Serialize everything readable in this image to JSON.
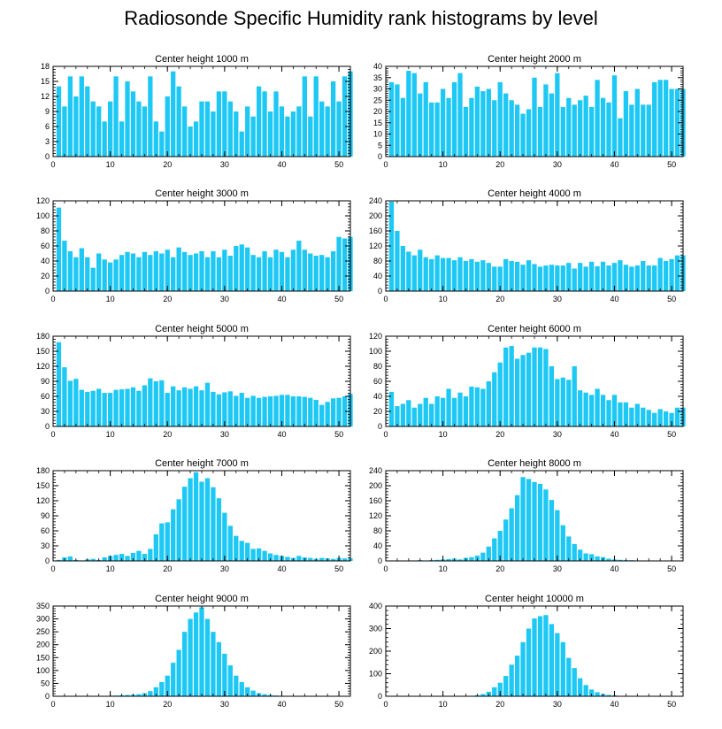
{
  "title": "Radiosonde Specific Humidity rank histograms by level",
  "colors": {
    "bar": "#1ec8f4",
    "axis": "#000000",
    "background": "#ffffff"
  },
  "chart_data": [
    {
      "type": "bar",
      "title": "Center height 1000 m",
      "xlim": [
        0,
        52
      ],
      "xticks": [
        0,
        10,
        20,
        30,
        40,
        50
      ],
      "ylim": [
        0,
        18
      ],
      "yticks": [
        0,
        3,
        6,
        9,
        12,
        15,
        18
      ],
      "x_start": 1,
      "values": [
        14,
        10,
        16,
        12,
        16,
        14,
        11,
        10,
        7,
        11,
        16,
        7,
        15,
        13,
        11,
        10,
        16,
        7,
        5,
        12,
        17,
        14,
        10,
        6,
        7,
        11,
        11,
        9,
        13,
        13,
        11,
        9,
        5,
        10,
        8,
        14,
        13,
        9,
        13,
        10,
        8,
        9,
        10,
        16,
        8,
        16,
        11,
        10,
        15,
        11,
        16,
        17
      ]
    },
    {
      "type": "bar",
      "title": "Center height 2000 m",
      "xlim": [
        0,
        52
      ],
      "xticks": [
        0,
        10,
        20,
        30,
        40,
        50
      ],
      "ylim": [
        0,
        40
      ],
      "yticks": [
        0,
        5,
        10,
        15,
        20,
        25,
        30,
        35,
        40
      ],
      "x_start": 1,
      "values": [
        33,
        32,
        26,
        38,
        37,
        28,
        33,
        24,
        24,
        30,
        26,
        33,
        37,
        22,
        26,
        31,
        29,
        30,
        25,
        33,
        28,
        25,
        23,
        19,
        21,
        35,
        22,
        32,
        28,
        37,
        22,
        26,
        23,
        25,
        27,
        22,
        34,
        26,
        24,
        36,
        17,
        29,
        23,
        30,
        23,
        23,
        33,
        34,
        34,
        30,
        30,
        30
      ]
    },
    {
      "type": "bar",
      "title": "Center height 3000 m",
      "xlim": [
        0,
        52
      ],
      "xticks": [
        0,
        10,
        20,
        30,
        40,
        50
      ],
      "ylim": [
        0,
        120
      ],
      "yticks": [
        0,
        20,
        40,
        60,
        80,
        100,
        120
      ],
      "x_start": 1,
      "values": [
        111,
        67,
        53,
        45,
        57,
        45,
        31,
        50,
        42,
        38,
        42,
        48,
        52,
        50,
        45,
        52,
        48,
        53,
        50,
        55,
        45,
        58,
        52,
        48,
        50,
        53,
        45,
        53,
        45,
        55,
        47,
        60,
        62,
        58,
        48,
        45,
        53,
        45,
        55,
        52,
        45,
        55,
        67,
        55,
        50,
        47,
        48,
        45,
        53,
        72,
        70,
        72
      ]
    },
    {
      "type": "bar",
      "title": "Center height 4000 m",
      "xlim": [
        0,
        52
      ],
      "xticks": [
        0,
        10,
        20,
        30,
        40,
        50
      ],
      "ylim": [
        0,
        240
      ],
      "yticks": [
        0,
        40,
        80,
        120,
        160,
        200,
        240
      ],
      "x_start": 1,
      "values": [
        238,
        160,
        120,
        105,
        95,
        110,
        90,
        85,
        95,
        88,
        88,
        82,
        90,
        80,
        85,
        78,
        82,
        75,
        65,
        65,
        85,
        80,
        78,
        70,
        82,
        72,
        65,
        68,
        70,
        68,
        68,
        75,
        60,
        75,
        65,
        78,
        66,
        78,
        68,
        75,
        82,
        70,
        65,
        68,
        80,
        68,
        68,
        88,
        80,
        85,
        95,
        95
      ]
    },
    {
      "type": "bar",
      "title": "Center height 5000 m",
      "xlim": [
        0,
        52
      ],
      "xticks": [
        0,
        10,
        20,
        30,
        40,
        50
      ],
      "ylim": [
        0,
        180
      ],
      "yticks": [
        0,
        30,
        60,
        90,
        120,
        150,
        180
      ],
      "x_start": 1,
      "values": [
        168,
        118,
        91,
        95,
        73,
        69,
        71,
        75,
        67,
        67,
        73,
        74,
        75,
        78,
        71,
        82,
        96,
        90,
        92,
        67,
        80,
        72,
        78,
        75,
        80,
        72,
        87,
        69,
        64,
        68,
        70,
        61,
        67,
        57,
        61,
        57,
        59,
        60,
        61,
        63,
        63,
        60,
        60,
        59,
        57,
        53,
        43,
        49,
        56,
        57,
        60,
        65
      ]
    },
    {
      "type": "bar",
      "title": "Center height 6000 m",
      "xlim": [
        0,
        52
      ],
      "xticks": [
        0,
        10,
        20,
        30,
        40,
        50
      ],
      "ylim": [
        0,
        120
      ],
      "yticks": [
        0,
        20,
        40,
        60,
        80,
        100,
        120
      ],
      "x_start": 1,
      "values": [
        46,
        27,
        30,
        35,
        25,
        30,
        38,
        30,
        40,
        38,
        50,
        38,
        45,
        40,
        53,
        52,
        50,
        60,
        72,
        85,
        105,
        107,
        90,
        95,
        98,
        105,
        105,
        103,
        80,
        63,
        65,
        62,
        80,
        48,
        45,
        42,
        50,
        42,
        35,
        42,
        32,
        32,
        25,
        30,
        25,
        22,
        18,
        23,
        20,
        18,
        25,
        25
      ]
    },
    {
      "type": "bar",
      "title": "Center height 7000 m",
      "xlim": [
        0,
        52
      ],
      "xticks": [
        0,
        10,
        20,
        30,
        40,
        50
      ],
      "ylim": [
        0,
        180
      ],
      "yticks": [
        0,
        30,
        60,
        90,
        120,
        150,
        180
      ],
      "x_start": 1,
      "values": [
        2,
        7,
        9,
        2,
        1,
        3,
        4,
        2,
        7,
        10,
        12,
        14,
        10,
        16,
        20,
        14,
        24,
        53,
        75,
        77,
        103,
        123,
        148,
        165,
        177,
        158,
        165,
        147,
        125,
        96,
        70,
        50,
        40,
        36,
        24,
        25,
        20,
        15,
        12,
        10,
        8,
        6,
        10,
        7,
        6,
        4,
        6,
        5,
        4,
        6,
        5,
        5
      ]
    },
    {
      "type": "bar",
      "title": "Center height 8000 m",
      "xlim": [
        0,
        52
      ],
      "xticks": [
        0,
        10,
        20,
        30,
        40,
        50
      ],
      "ylim": [
        0,
        240
      ],
      "yticks": [
        0,
        40,
        80,
        120,
        160,
        200,
        240
      ],
      "x_start": 1,
      "values": [
        0,
        0,
        0,
        0,
        1,
        2,
        1,
        2,
        3,
        4,
        5,
        6,
        4,
        8,
        10,
        14,
        22,
        38,
        60,
        80,
        110,
        140,
        175,
        223,
        218,
        210,
        205,
        190,
        162,
        135,
        95,
        65,
        45,
        30,
        20,
        18,
        12,
        10,
        6,
        4,
        3,
        2,
        2,
        1,
        1,
        0,
        0,
        0,
        0,
        0,
        0,
        0
      ]
    },
    {
      "type": "bar",
      "title": "Center height 9000 m",
      "xlim": [
        0,
        52
      ],
      "xticks": [
        0,
        10,
        20,
        30,
        40,
        50
      ],
      "ylim": [
        0,
        350
      ],
      "yticks": [
        0,
        50,
        100,
        150,
        200,
        250,
        300,
        350
      ],
      "x_start": 1,
      "values": [
        0,
        0,
        0,
        0,
        0,
        0,
        0,
        0,
        1,
        2,
        3,
        4,
        5,
        6,
        8,
        12,
        20,
        35,
        55,
        80,
        130,
        180,
        250,
        300,
        325,
        345,
        300,
        250,
        210,
        165,
        120,
        80,
        55,
        35,
        22,
        12,
        8,
        5,
        3,
        2,
        1,
        1,
        0,
        0,
        0,
        0,
        0,
        0,
        0,
        0,
        0,
        0
      ]
    },
    {
      "type": "bar",
      "title": "Center height 10000 m",
      "xlim": [
        0,
        52
      ],
      "xticks": [
        0,
        10,
        20,
        30,
        40,
        50
      ],
      "ylim": [
        0,
        400
      ],
      "yticks": [
        0,
        100,
        200,
        300,
        400
      ],
      "x_start": 1,
      "values": [
        0,
        0,
        0,
        0,
        0,
        0,
        0,
        0,
        0,
        0,
        0,
        0,
        0,
        1,
        2,
        5,
        10,
        20,
        40,
        60,
        90,
        140,
        180,
        240,
        300,
        345,
        355,
        360,
        320,
        280,
        240,
        170,
        125,
        80,
        50,
        30,
        18,
        10,
        6,
        4,
        2,
        2,
        1,
        0,
        0,
        0,
        0,
        0,
        0,
        0,
        0,
        0
      ]
    }
  ]
}
